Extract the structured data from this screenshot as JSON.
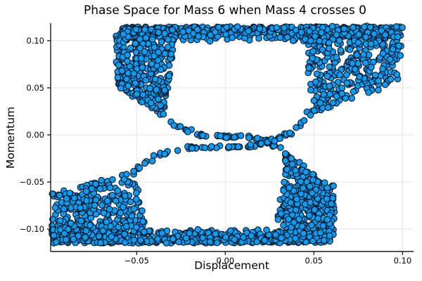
{
  "chart_data": {
    "type": "scatter",
    "title": "Phase Space for Mass 6 when Mass 4 crosses 0",
    "xlabel": "Displacement",
    "ylabel": "Momentum",
    "xlim": [
      -0.0985,
      0.1058
    ],
    "ylim": [
      -0.1238,
      0.1186
    ],
    "grid": true,
    "legend": "none",
    "xticks": [
      {
        "value": -0.05,
        "label": "−0.05"
      },
      {
        "value": 0.0,
        "label": "0.00"
      },
      {
        "value": 0.05,
        "label": "0.05"
      },
      {
        "value": 0.1,
        "label": "0.10"
      }
    ],
    "yticks": [
      {
        "value": 0.1,
        "label": "0.10"
      },
      {
        "value": 0.05,
        "label": "0.05"
      },
      {
        "value": 0.0,
        "label": "0.00"
      },
      {
        "value": -0.05,
        "label": "−0.05"
      },
      {
        "value": -0.1,
        "label": "−0.10"
      }
    ],
    "marker": {
      "shape": "circle",
      "radius_px": 4.3,
      "fill": "#0d9cf2",
      "stroke": "rgba(5,15,30,0.85)",
      "stroke_width": 1.25
    },
    "colors": {
      "background": "#ffffff",
      "grid": "#e4e4e4",
      "spine": "#1a1a1a",
      "tick": "#1a1a1a",
      "text": "#000000"
    },
    "seed": 1357924,
    "point_distribution": {
      "description": "hourglass-shaped phase-space cloud, ~2300 points, 180-degree rotationally symmetric",
      "clusters": [
        {
          "name": "top-edge-band",
          "shape": "band",
          "count": 440,
          "x_range": [
            -0.06,
            0.099
          ],
          "y_range": [
            0.099,
            0.1148
          ],
          "y_bias": "top"
        },
        {
          "name": "bottom-edge-band",
          "shape": "band",
          "count": 440,
          "x_range": [
            -0.098,
            0.059
          ],
          "y_range": [
            -0.1148,
            -0.099
          ],
          "y_bias": "bottom"
        },
        {
          "name": "upper-left-lobe",
          "shape": "quad",
          "count": 360,
          "vertices": [
            [
              -0.062,
              0.113
            ],
            [
              -0.028,
              0.112
            ],
            [
              -0.034,
              0.02
            ],
            [
              -0.061,
              0.05
            ]
          ]
        },
        {
          "name": "upper-right-lobe",
          "shape": "quad",
          "count": 330,
          "vertices": [
            [
              0.044,
              0.115
            ],
            [
              0.1,
              0.116
            ],
            [
              0.099,
              0.056
            ],
            [
              0.048,
              0.022
            ]
          ]
        },
        {
          "name": "lower-right-lobe",
          "shape": "quad",
          "count": 360,
          "vertices": [
            [
              0.062,
              -0.113
            ],
            [
              0.028,
              -0.112
            ],
            [
              0.034,
              -0.02
            ],
            [
              0.061,
              -0.05
            ]
          ]
        },
        {
          "name": "lower-left-lobe",
          "shape": "quad",
          "count": 330,
          "vertices": [
            [
              -0.044,
              -0.115
            ],
            [
              -0.098,
              -0.115
            ],
            [
              -0.098,
              -0.062
            ],
            [
              -0.05,
              -0.038
            ]
          ]
        },
        {
          "name": "center-arm-descending",
          "shape": "s_curve",
          "count": 55,
          "from": [
            -0.036,
            0.024
          ],
          "to": [
            0.038,
            -0.027
          ],
          "jitter": 0.0017
        },
        {
          "name": "center-arm-ascending",
          "shape": "s_curve",
          "count": 70,
          "from": [
            -0.058,
            -0.052
          ],
          "to": [
            0.05,
            0.026
          ],
          "jitter": 0.0019
        }
      ]
    }
  }
}
